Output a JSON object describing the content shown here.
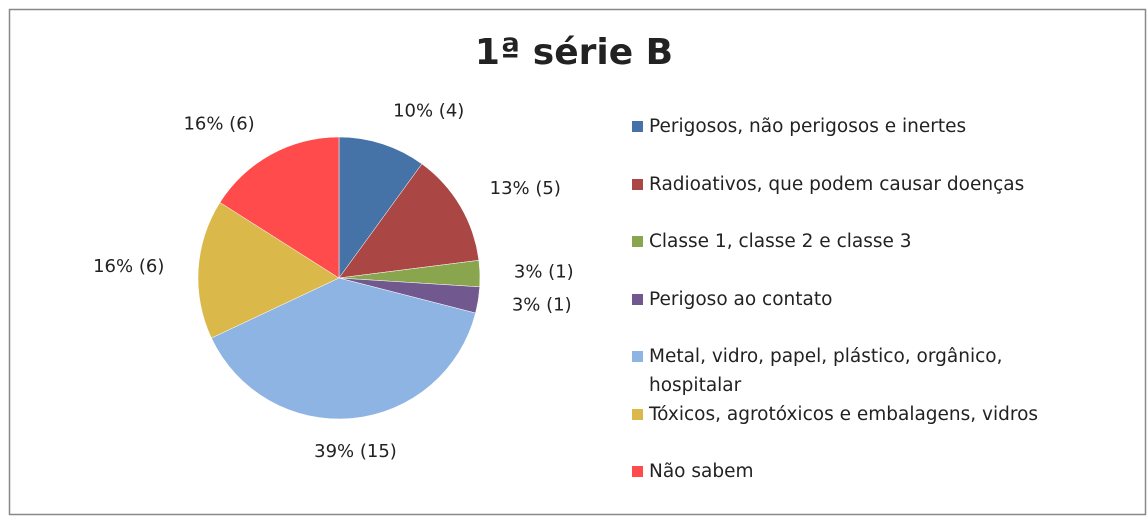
{
  "chart_data": {
    "type": "pie",
    "title": "1ª série B",
    "categories": [
      "Perigosos, não perigosos e inertes",
      "Radioativos, que podem causar doenças",
      "Classe 1, classe 2 e classe 3",
      "Perigoso ao contato",
      "Metal, vidro, papel, plástico, orgânico, hospitalar",
      "Tóxicos, agrotóxicos e embalagens, vidros",
      "Não sabem"
    ],
    "values": [
      10,
      13,
      3,
      3,
      39,
      16,
      16
    ],
    "value_labels": [
      "10% (4)",
      "13% (5)",
      "3% (1)",
      "3% (1)",
      "39% (15)",
      "16% (6)",
      "16% (6)"
    ],
    "colors": [
      "#4572a7",
      "#aa4643",
      "#89a54e",
      "#71588f",
      "#8db4e2",
      "#dbb84a",
      "#ff4b4b"
    ],
    "legend": "right"
  }
}
